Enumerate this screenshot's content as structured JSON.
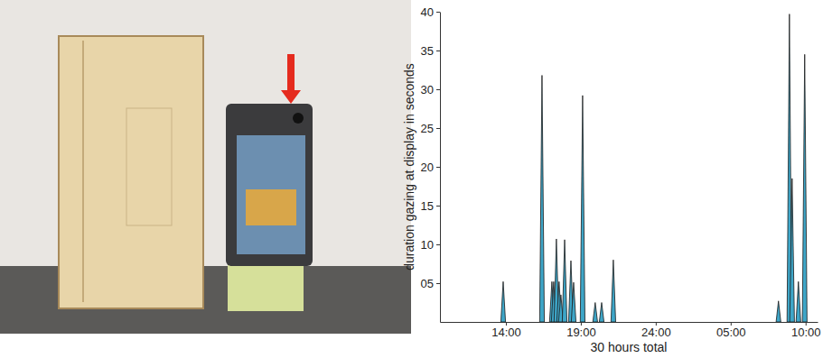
{
  "chart_data": {
    "type": "area",
    "xlabel": "30 hours total",
    "ylabel": "duration gazing at display in seconds",
    "x": [
      13.82,
      16.41,
      17.07,
      17.19,
      17.37,
      17.55,
      17.67,
      17.92,
      18.34,
      18.52,
      19.12,
      19.96,
      20.39,
      21.17,
      32.19,
      32.92,
      33.1,
      33.52,
      33.94
    ],
    "values": [
      5.2,
      31.8,
      5.2,
      5.2,
      10.7,
      5.2,
      3.5,
      10.6,
      7.9,
      5.1,
      29.2,
      2.5,
      2.5,
      8.0,
      2.7,
      39.7,
      18.5,
      5.2,
      34.5
    ],
    "color": "#3ea6c8",
    "xlim": [
      9.6,
      34.8
    ],
    "xticks": [
      {
        "value": 14,
        "label": "14:00"
      },
      {
        "value": 19,
        "label": "19:00"
      },
      {
        "value": 24,
        "label": "24:00"
      },
      {
        "value": 29,
        "label": "05:00"
      },
      {
        "value": 34,
        "label": "10:00"
      }
    ],
    "ylim": [
      0,
      40
    ],
    "yticks": [
      {
        "value": 5,
        "label": "05"
      },
      10,
      15,
      20,
      25,
      30,
      35,
      40
    ]
  }
}
